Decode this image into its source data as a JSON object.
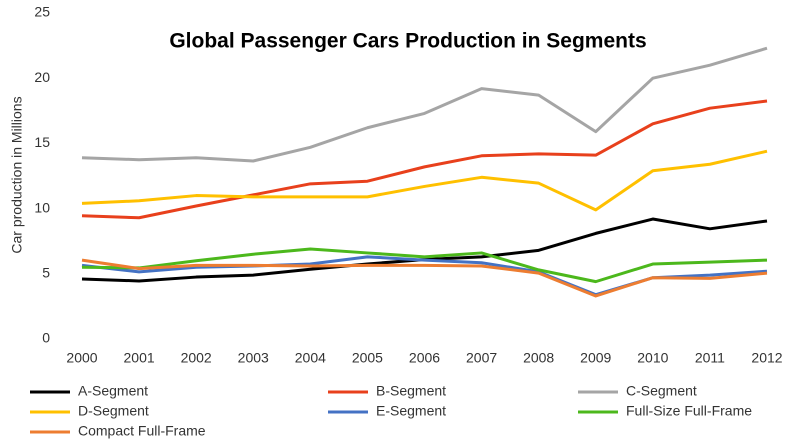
{
  "chart_data": {
    "type": "line",
    "title": "Global Passenger Cars Production in Segments",
    "y_label": "Car production in Millions",
    "categories": [
      "2000",
      "2001",
      "2002",
      "2003",
      "2004",
      "2005",
      "2006",
      "2007",
      "2008",
      "2009",
      "2010",
      "2011",
      "2012"
    ],
    "ylim": [
      0,
      25
    ],
    "yticks": [
      0,
      5,
      10,
      15,
      20,
      25
    ],
    "grid": false,
    "legend": "bottom",
    "series": [
      {
        "name": "A-Segment",
        "color": "#000000",
        "values": [
          4.6,
          4.45,
          4.75,
          4.9,
          5.35,
          5.75,
          6.1,
          6.3,
          6.8,
          8.1,
          9.2,
          8.45,
          9.05
        ]
      },
      {
        "name": "B-Segment",
        "color": "#e8401c",
        "values": [
          9.45,
          9.3,
          10.2,
          11.05,
          11.9,
          12.1,
          13.2,
          14.05,
          14.2,
          14.1,
          16.5,
          17.7,
          18.25
        ]
      },
      {
        "name": "C-Segment",
        "color": "#a5a5a5",
        "values": [
          13.9,
          13.75,
          13.9,
          13.65,
          14.7,
          16.2,
          17.3,
          19.2,
          18.7,
          15.9,
          20.0,
          21.0,
          22.3
        ]
      },
      {
        "name": "D-Segment",
        "color": "#ffc000",
        "values": [
          10.4,
          10.6,
          11.0,
          10.9,
          10.9,
          10.9,
          11.7,
          12.4,
          11.95,
          9.9,
          12.9,
          13.4,
          14.4
        ]
      },
      {
        "name": "E-Segment",
        "color": "#4472c4",
        "values": [
          5.65,
          5.15,
          5.5,
          5.6,
          5.75,
          6.3,
          6.05,
          5.85,
          5.15,
          3.4,
          4.7,
          4.9,
          5.2
        ]
      },
      {
        "name": "Full-Size Full-Frame",
        "color": "#4cb81c",
        "values": [
          5.5,
          5.45,
          6.0,
          6.5,
          6.9,
          6.6,
          6.3,
          6.6,
          5.3,
          4.4,
          5.75,
          5.9,
          6.05
        ]
      },
      {
        "name": "Compact Full-Frame",
        "color": "#ed7d31",
        "values": [
          6.05,
          5.4,
          5.65,
          5.65,
          5.6,
          5.65,
          5.65,
          5.6,
          5.05,
          3.3,
          4.7,
          4.65,
          5.05
        ]
      }
    ]
  }
}
